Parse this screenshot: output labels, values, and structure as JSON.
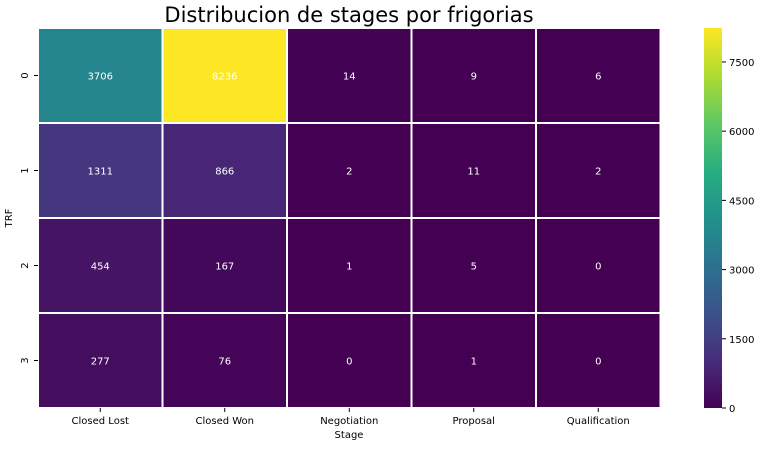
{
  "chart_data": {
    "type": "heatmap",
    "title": "Distribucion de stages por frigorias",
    "xlabel": "Stage",
    "ylabel": "TRF",
    "x_categories": [
      "Closed Lost",
      "Closed Won",
      "Negotiation",
      "Proposal",
      "Qualification"
    ],
    "y_categories": [
      "0",
      "1",
      "2",
      "3"
    ],
    "values": [
      [
        3706,
        8236,
        14,
        9,
        6
      ],
      [
        1311,
        866,
        2,
        11,
        2
      ],
      [
        454,
        167,
        1,
        5,
        0
      ],
      [
        277,
        76,
        0,
        1,
        0
      ]
    ],
    "colormap": "viridis",
    "vmin": 0,
    "vmax": 8236,
    "colorbar_ticks": [
      0,
      1500,
      3000,
      4500,
      6000,
      7500
    ],
    "annotation_color": "#ffffff",
    "cell_border_color": "#ffffff"
  }
}
